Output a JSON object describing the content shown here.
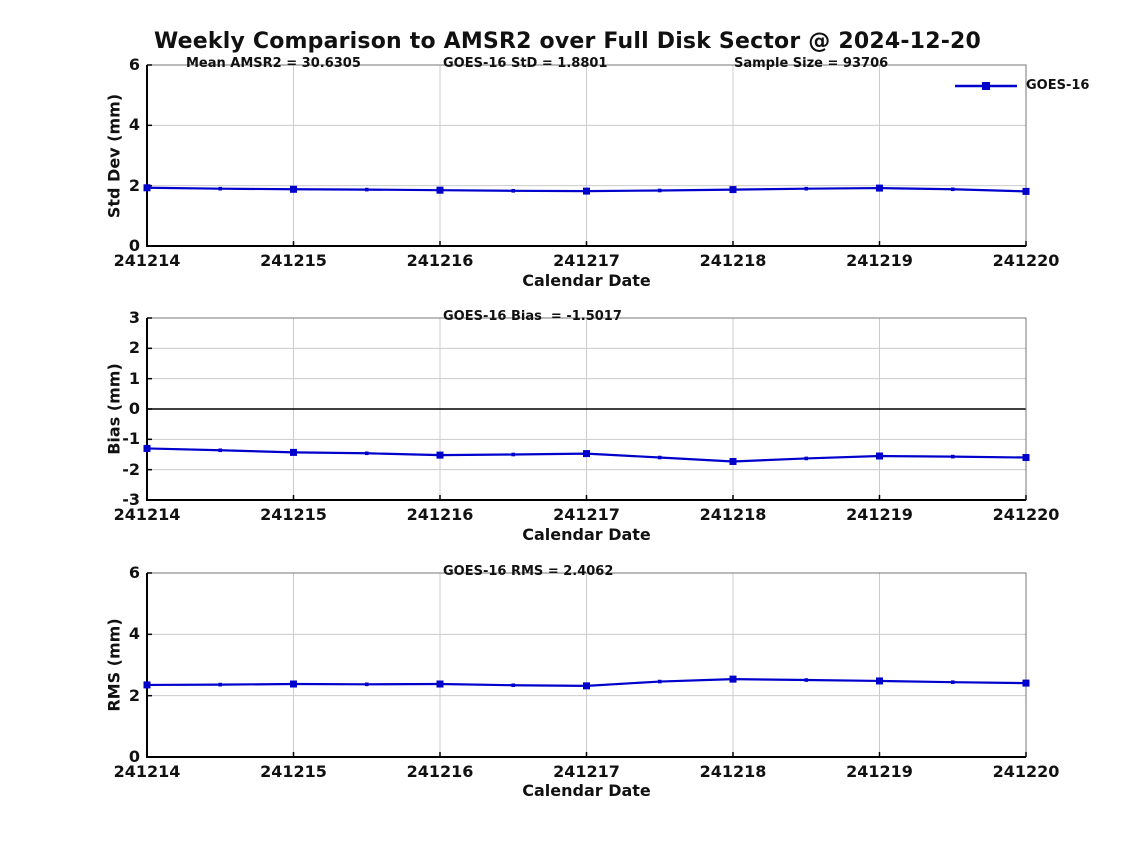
{
  "title": "Weekly Comparison to AMSR2 over Full Disk Sector @ 2024-12-20",
  "xlabel": "Calendar Date",
  "x_ticks": [
    "241214",
    "241215",
    "241216",
    "241217",
    "241218",
    "241219",
    "241220"
  ],
  "legend": {
    "label": "GOES-16",
    "position": "top-right"
  },
  "colors": {
    "line": "#0000CC",
    "grid": "#CCCCCC",
    "axis": "#000000",
    "frame": "#777777",
    "zero_line": "#000000"
  },
  "stats": {
    "mean_amsr2": 30.6305,
    "goes16_std": 1.8801,
    "sample_size": 93706,
    "goes16_bias": -1.5017,
    "goes16_rms": 2.4062
  },
  "chart_data": [
    {
      "type": "line",
      "name": "std-dev",
      "ylabel": "Std Dev (mm)",
      "ylim": [
        0,
        6
      ],
      "yticks": [
        0,
        2,
        4,
        6
      ],
      "grid": true,
      "annotations": [
        {
          "text": "Mean AMSR2 = 30.6305"
        },
        {
          "text": "GOES-16 StD = 1.8801"
        },
        {
          "text": "Sample Size = 93706"
        }
      ],
      "x_day_offsets": [
        0,
        0.5,
        1,
        1.5,
        2,
        2.5,
        3,
        3.5,
        4,
        4.5,
        5,
        5.5,
        6
      ],
      "series": [
        {
          "name": "GOES-16",
          "values": [
            1.93,
            1.9,
            1.88,
            1.87,
            1.85,
            1.83,
            1.82,
            1.84,
            1.87,
            1.9,
            1.92,
            1.88,
            1.81
          ]
        }
      ]
    },
    {
      "type": "line",
      "name": "bias",
      "ylabel": "Bias (mm)",
      "ylim": [
        -3,
        3
      ],
      "yticks": [
        -3,
        -2,
        -1,
        0,
        1,
        2,
        3
      ],
      "grid": true,
      "zero_line": true,
      "annotations": [
        {
          "text": "GOES-16 Bias  = -1.5017"
        }
      ],
      "x_day_offsets": [
        0,
        0.5,
        1,
        1.5,
        2,
        2.5,
        3,
        3.5,
        4,
        4.5,
        5,
        5.5,
        6
      ],
      "series": [
        {
          "name": "GOES-16",
          "values": [
            -1.3,
            -1.36,
            -1.43,
            -1.46,
            -1.52,
            -1.5,
            -1.47,
            -1.6,
            -1.73,
            -1.63,
            -1.55,
            -1.57,
            -1.6
          ]
        }
      ]
    },
    {
      "type": "line",
      "name": "rms",
      "ylabel": "RMS (mm)",
      "ylim": [
        0,
        6
      ],
      "yticks": [
        0,
        2,
        4,
        6
      ],
      "grid": true,
      "annotations": [
        {
          "text": "GOES-16 RMS = 2.4062"
        }
      ],
      "x_day_offsets": [
        0,
        0.5,
        1,
        1.5,
        2,
        2.5,
        3,
        3.5,
        4,
        4.5,
        5,
        5.5,
        6
      ],
      "series": [
        {
          "name": "GOES-16",
          "values": [
            2.35,
            2.36,
            2.38,
            2.37,
            2.38,
            2.34,
            2.32,
            2.46,
            2.54,
            2.51,
            2.48,
            2.44,
            2.41
          ]
        }
      ]
    }
  ]
}
